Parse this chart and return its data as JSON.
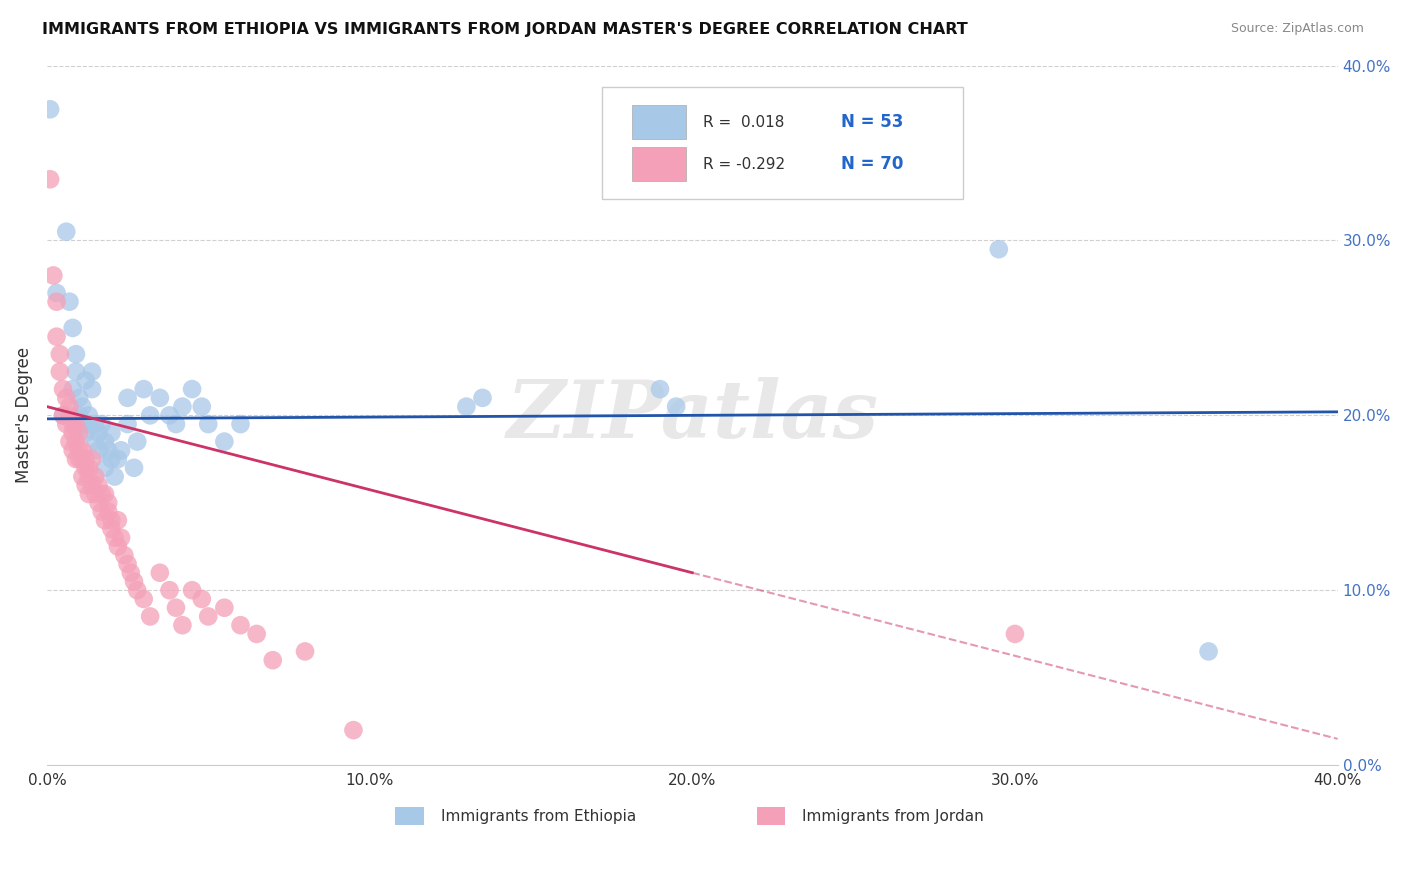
{
  "title": "IMMIGRANTS FROM ETHIOPIA VS IMMIGRANTS FROM JORDAN MASTER'S DEGREE CORRELATION CHART",
  "source": "Source: ZipAtlas.com",
  "ylabel": "Master's Degree",
  "xlim": [
    0.0,
    0.4
  ],
  "ylim": [
    0.0,
    0.4
  ],
  "ytick_values": [
    0.0,
    0.1,
    0.2,
    0.3,
    0.4
  ],
  "xtick_values": [
    0.0,
    0.1,
    0.2,
    0.3,
    0.4
  ],
  "R_ethiopia": 0.018,
  "N_ethiopia": 53,
  "R_jordan": -0.292,
  "N_jordan": 70,
  "watermark": "ZIPatlas",
  "ethiopia_color": "#a8c8e8",
  "jordan_color": "#f4a0b8",
  "ethiopia_line_color": "#2255aa",
  "jordan_line_color": "#cc3366",
  "ethiopia_scatter": [
    [
      0.001,
      0.375
    ],
    [
      0.003,
      0.27
    ],
    [
      0.005,
      0.2
    ],
    [
      0.006,
      0.305
    ],
    [
      0.007,
      0.265
    ],
    [
      0.008,
      0.25
    ],
    [
      0.008,
      0.215
    ],
    [
      0.009,
      0.235
    ],
    [
      0.009,
      0.225
    ],
    [
      0.01,
      0.21
    ],
    [
      0.01,
      0.2
    ],
    [
      0.011,
      0.195
    ],
    [
      0.011,
      0.205
    ],
    [
      0.012,
      0.22
    ],
    [
      0.012,
      0.19
    ],
    [
      0.013,
      0.2
    ],
    [
      0.013,
      0.195
    ],
    [
      0.014,
      0.225
    ],
    [
      0.014,
      0.215
    ],
    [
      0.015,
      0.185
    ],
    [
      0.015,
      0.195
    ],
    [
      0.016,
      0.19
    ],
    [
      0.016,
      0.18
    ],
    [
      0.017,
      0.195
    ],
    [
      0.018,
      0.185
    ],
    [
      0.018,
      0.17
    ],
    [
      0.019,
      0.18
    ],
    [
      0.02,
      0.19
    ],
    [
      0.02,
      0.175
    ],
    [
      0.021,
      0.165
    ],
    [
      0.022,
      0.175
    ],
    [
      0.023,
      0.18
    ],
    [
      0.025,
      0.195
    ],
    [
      0.025,
      0.21
    ],
    [
      0.027,
      0.17
    ],
    [
      0.028,
      0.185
    ],
    [
      0.03,
      0.215
    ],
    [
      0.032,
      0.2
    ],
    [
      0.035,
      0.21
    ],
    [
      0.038,
      0.2
    ],
    [
      0.04,
      0.195
    ],
    [
      0.042,
      0.205
    ],
    [
      0.045,
      0.215
    ],
    [
      0.048,
      0.205
    ],
    [
      0.05,
      0.195
    ],
    [
      0.055,
      0.185
    ],
    [
      0.06,
      0.195
    ],
    [
      0.13,
      0.205
    ],
    [
      0.135,
      0.21
    ],
    [
      0.19,
      0.215
    ],
    [
      0.195,
      0.205
    ],
    [
      0.295,
      0.295
    ],
    [
      0.36,
      0.065
    ]
  ],
  "jordan_scatter": [
    [
      0.001,
      0.335
    ],
    [
      0.002,
      0.28
    ],
    [
      0.003,
      0.245
    ],
    [
      0.003,
      0.265
    ],
    [
      0.004,
      0.225
    ],
    [
      0.004,
      0.235
    ],
    [
      0.005,
      0.215
    ],
    [
      0.005,
      0.2
    ],
    [
      0.006,
      0.21
    ],
    [
      0.006,
      0.195
    ],
    [
      0.007,
      0.205
    ],
    [
      0.007,
      0.185
    ],
    [
      0.007,
      0.2
    ],
    [
      0.008,
      0.195
    ],
    [
      0.008,
      0.18
    ],
    [
      0.008,
      0.19
    ],
    [
      0.009,
      0.185
    ],
    [
      0.009,
      0.175
    ],
    [
      0.009,
      0.195
    ],
    [
      0.01,
      0.18
    ],
    [
      0.01,
      0.175
    ],
    [
      0.01,
      0.19
    ],
    [
      0.011,
      0.175
    ],
    [
      0.011,
      0.165
    ],
    [
      0.011,
      0.18
    ],
    [
      0.012,
      0.17
    ],
    [
      0.012,
      0.16
    ],
    [
      0.012,
      0.175
    ],
    [
      0.013,
      0.165
    ],
    [
      0.013,
      0.17
    ],
    [
      0.013,
      0.155
    ],
    [
      0.014,
      0.16
    ],
    [
      0.014,
      0.175
    ],
    [
      0.015,
      0.155
    ],
    [
      0.015,
      0.165
    ],
    [
      0.016,
      0.15
    ],
    [
      0.016,
      0.16
    ],
    [
      0.017,
      0.155
    ],
    [
      0.017,
      0.145
    ],
    [
      0.018,
      0.155
    ],
    [
      0.018,
      0.14
    ],
    [
      0.019,
      0.145
    ],
    [
      0.019,
      0.15
    ],
    [
      0.02,
      0.14
    ],
    [
      0.02,
      0.135
    ],
    [
      0.021,
      0.13
    ],
    [
      0.022,
      0.14
    ],
    [
      0.022,
      0.125
    ],
    [
      0.023,
      0.13
    ],
    [
      0.024,
      0.12
    ],
    [
      0.025,
      0.115
    ],
    [
      0.026,
      0.11
    ],
    [
      0.027,
      0.105
    ],
    [
      0.028,
      0.1
    ],
    [
      0.03,
      0.095
    ],
    [
      0.032,
      0.085
    ],
    [
      0.035,
      0.11
    ],
    [
      0.038,
      0.1
    ],
    [
      0.04,
      0.09
    ],
    [
      0.042,
      0.08
    ],
    [
      0.045,
      0.1
    ],
    [
      0.048,
      0.095
    ],
    [
      0.05,
      0.085
    ],
    [
      0.055,
      0.09
    ],
    [
      0.06,
      0.08
    ],
    [
      0.065,
      0.075
    ],
    [
      0.07,
      0.06
    ],
    [
      0.08,
      0.065
    ],
    [
      0.095,
      0.02
    ],
    [
      0.3,
      0.075
    ]
  ]
}
